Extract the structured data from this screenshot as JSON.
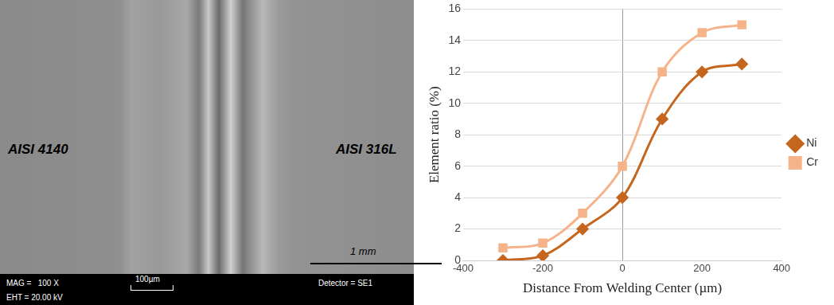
{
  "chart_data": {
    "type": "line",
    "x_label": "Distance From Welding Center (µm)",
    "y_label": "Element ratio (%)",
    "x": [
      -300,
      -200,
      -100,
      0,
      100,
      200,
      300
    ],
    "series": [
      {
        "name": "Ni",
        "color": "#c5661f",
        "marker": "diamond",
        "values": [
          0,
          0.3,
          2,
          4,
          9,
          12,
          12.5
        ]
      },
      {
        "name": "Cr",
        "color": "#f6b38a",
        "marker": "square",
        "values": [
          0.8,
          1.1,
          3,
          6,
          12,
          14.5,
          15
        ]
      }
    ],
    "xlim": [
      -400,
      400
    ],
    "xticks": [
      -400,
      -200,
      0,
      200,
      400
    ],
    "ylim": [
      0,
      16
    ],
    "yticks": [
      0,
      2,
      4,
      6,
      8,
      10,
      12,
      14,
      16
    ],
    "grid": true,
    "legend": "right"
  },
  "micrograph": {
    "left_label": "AISI 4140",
    "right_label": "AISI 316L",
    "scale_bar": "1 mm",
    "info_bar": {
      "magnification": "MAG =   100 X",
      "voltage": "EHT = 20.00 kV",
      "scale_bar": "100µm",
      "detector": "Detector = SE1"
    }
  }
}
